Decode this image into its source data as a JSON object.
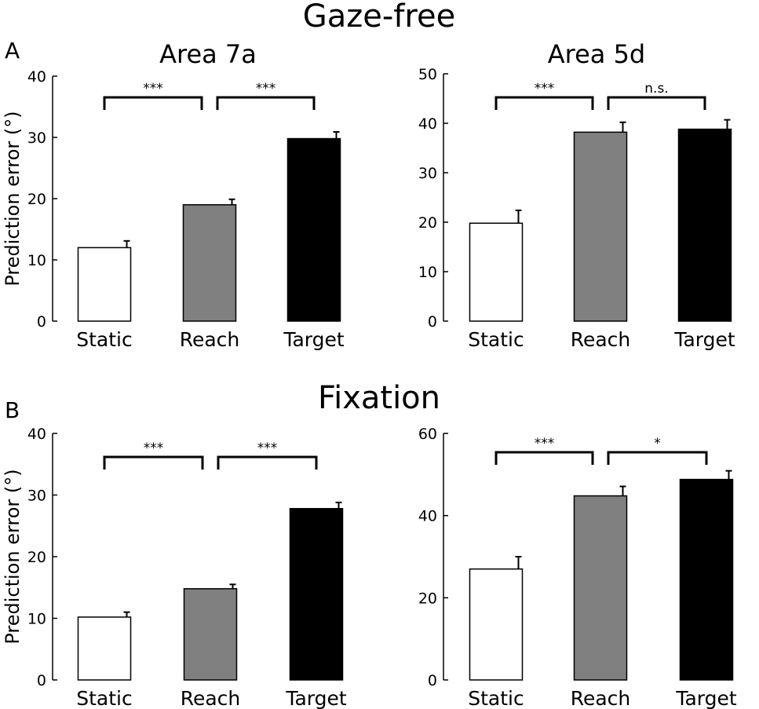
{
  "figure": {
    "sections": [
      "Gaze-free",
      "Fixation"
    ],
    "panel_letters": [
      "A",
      "B"
    ]
  },
  "colors": {
    "static": "#ffffff",
    "reach": "#808080",
    "target": "#000000",
    "axis": "#000000"
  },
  "chart_data": [
    {
      "type": "bar",
      "section": "Gaze-free",
      "panel": "A",
      "title": "Area 7a",
      "ylabel": "Prediction error (°)",
      "categories": [
        "Static",
        "Reach",
        "Target"
      ],
      "values": [
        12,
        19,
        29.8
      ],
      "errors": [
        1.1,
        0.9,
        1.1
      ],
      "ylim": [
        0,
        40
      ],
      "yticks": [
        "0",
        "10",
        "20",
        "30",
        "40"
      ],
      "comparisons": [
        {
          "from": 0,
          "to": 1,
          "label": "***"
        },
        {
          "from": 1,
          "to": 2,
          "label": "***"
        }
      ]
    },
    {
      "type": "bar",
      "section": "Gaze-free",
      "panel": "A",
      "title": "Area 5d",
      "ylabel": "",
      "categories": [
        "Static",
        "Reach",
        "Target"
      ],
      "values": [
        19.8,
        38.2,
        38.8
      ],
      "errors": [
        2.6,
        2.0,
        1.9
      ],
      "ylim": [
        0,
        50
      ],
      "yticks": [
        "0",
        "10",
        "20",
        "30",
        "40",
        "50"
      ],
      "comparisons": [
        {
          "from": 0,
          "to": 1,
          "label": "***"
        },
        {
          "from": 1,
          "to": 2,
          "label": "n.s."
        }
      ]
    },
    {
      "type": "bar",
      "section": "Fixation",
      "panel": "B",
      "title": "",
      "ylabel": "Prediction error (°)",
      "categories": [
        "Static",
        "Reach",
        "Target"
      ],
      "values": [
        10.2,
        14.8,
        27.8
      ],
      "errors": [
        0.8,
        0.7,
        1.0
      ],
      "ylim": [
        0,
        40
      ],
      "yticks": [
        "0",
        "10",
        "20",
        "30",
        "40"
      ],
      "comparisons": [
        {
          "from": 0,
          "to": 1,
          "label": "***"
        },
        {
          "from": 1,
          "to": 2,
          "label": "***"
        }
      ]
    },
    {
      "type": "bar",
      "section": "Fixation",
      "panel": "B",
      "title": "",
      "ylabel": "",
      "categories": [
        "Static",
        "Reach",
        "Target"
      ],
      "values": [
        27,
        44.8,
        48.8
      ],
      "errors": [
        3.0,
        2.3,
        2.1
      ],
      "ylim": [
        0,
        60
      ],
      "yticks": [
        "0",
        "20",
        "40",
        "60"
      ],
      "comparisons": [
        {
          "from": 0,
          "to": 1,
          "label": "***"
        },
        {
          "from": 1,
          "to": 2,
          "label": "*"
        }
      ]
    }
  ]
}
